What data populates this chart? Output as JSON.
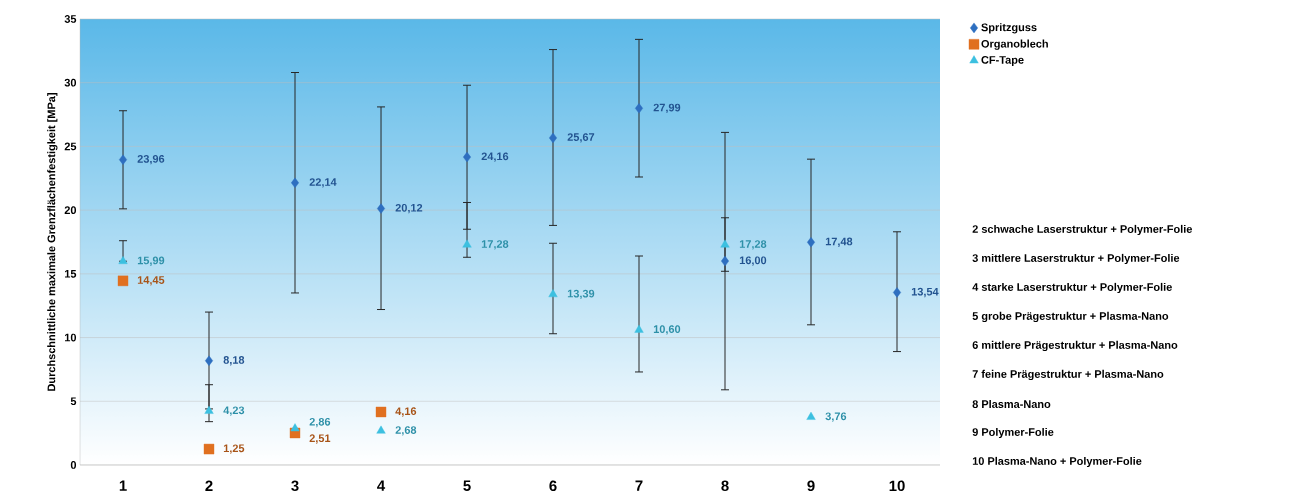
{
  "chart_data": {
    "type": "scatter",
    "ylabel": "Durchschnittliche maximale Grenzflächenfestigkeit [MPa]",
    "categories": [
      "1",
      "2",
      "3",
      "4",
      "5",
      "6",
      "7",
      "8",
      "9",
      "10"
    ],
    "ylim": [
      0,
      35
    ],
    "yticks": [
      0,
      5,
      10,
      15,
      20,
      25,
      30,
      35
    ],
    "grid": "y",
    "legend": "top right",
    "series": [
      {
        "name": "Spritzguss",
        "color": "#2e6fc0",
        "marker": "diamond",
        "values": [
          23.96,
          8.18,
          22.14,
          20.12,
          24.16,
          25.67,
          27.99,
          16.0,
          17.48,
          13.54
        ],
        "value_labels": [
          "23,96",
          "8,18",
          "22,14",
          "20,12",
          "24,16",
          "25,67",
          "27,99",
          "16,00",
          "17,48",
          "13,54"
        ],
        "errors": [
          [
            20.1,
            27.8
          ],
          [
            4.4,
            12.0
          ],
          [
            13.5,
            30.8
          ],
          [
            12.2,
            28.1
          ],
          [
            18.5,
            29.8
          ],
          [
            18.8,
            32.6
          ],
          [
            22.6,
            33.4
          ],
          [
            5.9,
            26.1
          ],
          [
            11.0,
            24.0
          ],
          [
            8.9,
            18.3
          ]
        ]
      },
      {
        "name": "Organoblech",
        "color": "#e07020",
        "marker": "square",
        "values": [
          14.45,
          1.25,
          2.51,
          4.16,
          null,
          null,
          null,
          null,
          null,
          null
        ],
        "value_labels": [
          "14,45",
          "1,25",
          "2,51",
          "4,16",
          null,
          null,
          null,
          null,
          null,
          null
        ]
      },
      {
        "name": "CF-Tape",
        "color": "#3cc0e0",
        "marker": "triangle",
        "values": [
          15.99,
          4.23,
          2.86,
          2.68,
          17.28,
          13.39,
          10.6,
          17.28,
          3.76,
          null
        ],
        "value_labels": [
          "15,99",
          "4,23",
          "2,86",
          "2,68",
          "17,28",
          "13,39",
          "10,60",
          "17,28",
          "3,76",
          null
        ],
        "errors": [
          [
            15.99,
            17.6
          ],
          [
            3.4,
            6.3
          ],
          null,
          null,
          [
            16.3,
            20.6
          ],
          [
            10.3,
            17.4
          ],
          [
            7.3,
            16.4
          ],
          [
            15.2,
            19.4
          ],
          null,
          null
        ]
      }
    ],
    "annotations": [
      "2 schwache Laserstruktur + Polymer-Folie",
      "3 mittlere Laserstruktur + Polymer-Folie",
      "4 starke Laserstruktur + Polymer-Folie",
      "5 grobe Prägestruktur + Plasma-Nano",
      "6 mittlere Prägestruktur + Plasma-Nano",
      "7 feine Prägestruktur + Plasma-Nano",
      "8 Plasma-Nano",
      "9 Polymer-Folie",
      "10 Plasma-Nano + Polymer-Folie"
    ]
  }
}
